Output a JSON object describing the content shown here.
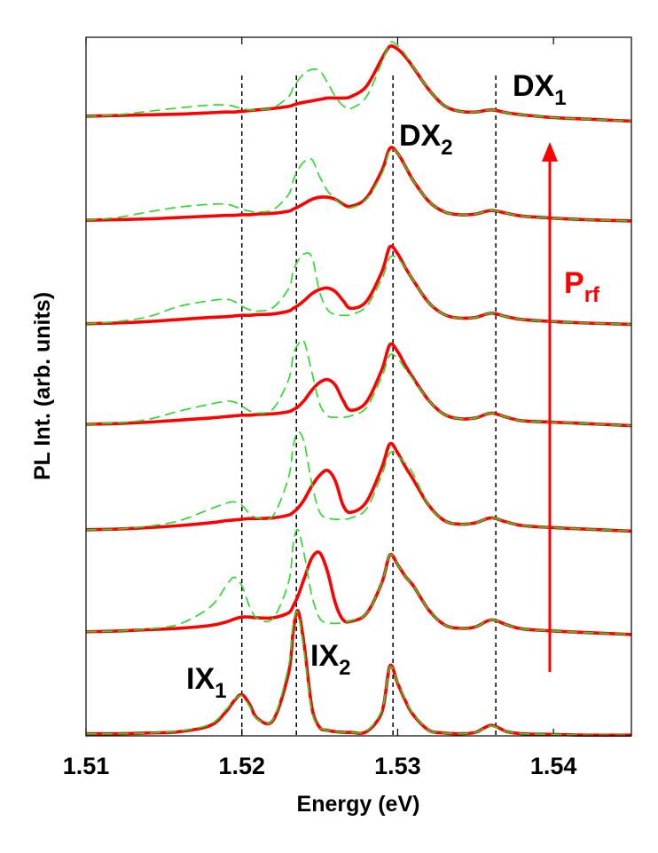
{
  "chart_data": {
    "type": "line",
    "x_label": "Energy (eV)",
    "y_label": "PL Int. (arb. units)",
    "xlim": [
      1.51,
      1.545
    ],
    "ylim": [
      0,
      100
    ],
    "xticks": [
      1.51,
      1.52,
      1.53,
      1.54
    ],
    "reference_lines": [
      1.52,
      1.5235,
      1.5297,
      1.5363
    ],
    "annotations": [
      {
        "text": "DX",
        "sub": "1",
        "color": "#000000"
      },
      {
        "text": "DX",
        "sub": "2",
        "color": "#000000"
      },
      {
        "text": "IX",
        "sub": "1",
        "color": "#000000"
      },
      {
        "text": "IX",
        "sub": "2",
        "color": "#000000"
      },
      {
        "text": "P",
        "sub": "rf",
        "color": "#ff0000"
      }
    ],
    "x": [
      1.51,
      1.512,
      1.514,
      1.516,
      1.518,
      1.519,
      1.5195,
      1.52,
      1.5205,
      1.521,
      1.522,
      1.523,
      1.5233,
      1.5236,
      1.524,
      1.5245,
      1.525,
      1.5255,
      1.526,
      1.5265,
      1.527,
      1.528,
      1.529,
      1.5295,
      1.53,
      1.5305,
      1.531,
      1.532,
      1.533,
      1.534,
      1.535,
      1.536,
      1.537,
      1.538,
      1.54,
      1.542,
      1.545
    ],
    "series": [
      {
        "color": "#ff0000",
        "dashed": false,
        "values": [
          0.3,
          0.3,
          0.4,
          0.6,
          1.5,
          3.5,
          5,
          5.9,
          4.5,
          2.5,
          2.2,
          9,
          15,
          17.9,
          13,
          4,
          1.2,
          0.8,
          0.6,
          0.5,
          0.5,
          0.6,
          3.5,
          10,
          7.5,
          5,
          3,
          0.8,
          0.4,
          0.3,
          0.5,
          1.5,
          0.6,
          0.3,
          0.2,
          0.1,
          0.1
        ]
      },
      {
        "color": "#ff0000",
        "dashed": false,
        "values": [
          14.9,
          15.0,
          15.2,
          15.4,
          15.8,
          16.3,
          16.7,
          17.0,
          17.0,
          16.9,
          16.9,
          17.6,
          18.6,
          20,
          22.5,
          25.5,
          26.2,
          23.5,
          19,
          16.6,
          16.4,
          17.5,
          22,
          25.9,
          24.5,
          22.8,
          21.5,
          18,
          15.9,
          15.4,
          15.6,
          16.6,
          15.9,
          15.3,
          15,
          14.8,
          14.5
        ]
      },
      {
        "color": "#ff0000",
        "dashed": false,
        "values": [
          29.5,
          29.6,
          29.8,
          30.1,
          30.5,
          30.8,
          30.9,
          31.0,
          31.1,
          31.1,
          31.2,
          31.6,
          32,
          32.6,
          33.8,
          35.8,
          37.3,
          38.0,
          36.5,
          33,
          32,
          33.5,
          38.5,
          41.8,
          40.5,
          38.5,
          36.7,
          33,
          30.8,
          30.3,
          30.5,
          31.2,
          30.6,
          30.1,
          29.8,
          29.6,
          29.3
        ]
      },
      {
        "color": "#ff0000",
        "dashed": false,
        "values": [
          44.6,
          44.7,
          44.9,
          45.2,
          45.5,
          45.7,
          45.8,
          45.9,
          45.9,
          46.0,
          46.1,
          46.4,
          46.7,
          47.1,
          48,
          49.5,
          50.6,
          51.0,
          50.2,
          48,
          46.6,
          47.8,
          52.5,
          56.0,
          55,
          53,
          51.2,
          48,
          46,
          45.4,
          45.5,
          46.2,
          45.6,
          45.1,
          44.9,
          44.7,
          44.4
        ]
      },
      {
        "color": "#ff0000",
        "dashed": false,
        "values": [
          59.0,
          59.1,
          59.3,
          59.6,
          59.9,
          60.0,
          60.1,
          60.2,
          60.2,
          60.3,
          60.4,
          60.8,
          61.2,
          61.6,
          62.3,
          63.3,
          63.9,
          64.1,
          63.6,
          62.3,
          61.2,
          62.2,
          66.5,
          70,
          69,
          67,
          65.2,
          62,
          60.3,
          59.8,
          59.9,
          60.5,
          60,
          59.6,
          59.3,
          59.1,
          58.9
        ]
      },
      {
        "color": "#ff0000",
        "dashed": false,
        "values": [
          73.8,
          73.9,
          74.0,
          74.2,
          74.4,
          74.5,
          74.5,
          74.6,
          74.6,
          74.7,
          74.8,
          75.1,
          75.4,
          75.7,
          76.2,
          76.8,
          77.1,
          77.1,
          76.8,
          76.1,
          75.8,
          77,
          81,
          84.1,
          83.4,
          81.5,
          79.5,
          76.5,
          75,
          74.6,
          74.7,
          75.2,
          74.8,
          74.4,
          74.1,
          73.9,
          73.7
        ]
      },
      {
        "color": "#ff0000",
        "dashed": false,
        "values": [
          88.7,
          88.8,
          88.9,
          89.0,
          89.2,
          89.3,
          89.3,
          89.4,
          89.5,
          89.6,
          89.8,
          90.1,
          90.3,
          90.5,
          90.7,
          90.9,
          91.1,
          91.3,
          91.3,
          91.3,
          91.5,
          93,
          97,
          98.7,
          98.3,
          97.2,
          95.7,
          92.5,
          90.2,
          89.4,
          89.3,
          89.6,
          89.2,
          88.9,
          88.5,
          88.3,
          88.0
        ]
      },
      {
        "color": "#22dd22",
        "dashed": true,
        "values": [
          0.3,
          0.3,
          0.4,
          0.7,
          1.7,
          3.8,
          5.2,
          5.7,
          4.2,
          2.4,
          2.3,
          10,
          16,
          17.6,
          12,
          3.5,
          1.2,
          0.8,
          0.6,
          0.5,
          0.5,
          0.7,
          3.8,
          9.8,
          7.6,
          5.2,
          3.1,
          0.8,
          0.4,
          0.3,
          0.5,
          1.4,
          0.6,
          0.3,
          0.2,
          0.1,
          0.1
        ]
      },
      {
        "color": "#22dd22",
        "dashed": true,
        "values": [
          14.9,
          15.0,
          15.3,
          16,
          18.5,
          21.5,
          22.7,
          21.5,
          18.5,
          16.8,
          16.8,
          22,
          27.5,
          29.5,
          26,
          20,
          16.8,
          16.2,
          16.1,
          16.2,
          16.5,
          17.5,
          22,
          25.9,
          24.5,
          22.8,
          21.5,
          18,
          15.9,
          15.4,
          15.6,
          16.6,
          15.9,
          15.3,
          15,
          14.8,
          14.5
        ]
      },
      {
        "color": "#22dd22",
        "dashed": true,
        "values": [
          29.5,
          29.6,
          30,
          30.8,
          32.5,
          33.3,
          33.5,
          33,
          31.8,
          31.2,
          31.5,
          37,
          41.5,
          43.5,
          42,
          36,
          32,
          31.2,
          31.0,
          31.0,
          31.2,
          32.5,
          37.5,
          40.5,
          40,
          39,
          37.5,
          33,
          30.8,
          30.3,
          30.5,
          31.2,
          30.6,
          30.1,
          29.8,
          29.6,
          29.3
        ]
      },
      {
        "color": "#22dd22",
        "dashed": true,
        "values": [
          44.6,
          44.8,
          45.3,
          46.5,
          47.5,
          47.9,
          47.8,
          47.2,
          46.5,
          46.2,
          46.8,
          51,
          54.5,
          56,
          56.4,
          52,
          47.5,
          45.8,
          45.6,
          45.6,
          45.8,
          47,
          51.5,
          54.5,
          54,
          52.5,
          51,
          48,
          46,
          45.4,
          45.5,
          46.2,
          45.6,
          45.1,
          44.9,
          44.7,
          44.4
        ]
      },
      {
        "color": "#22dd22",
        "dashed": true,
        "values": [
          59.0,
          59.3,
          60,
          61.5,
          62.3,
          62.5,
          62.2,
          61.5,
          61,
          60.8,
          61.3,
          64,
          66.5,
          68,
          69,
          68.5,
          63.5,
          61,
          60.3,
          60.2,
          60.3,
          61.5,
          65.5,
          68.5,
          68.3,
          67,
          65.2,
          62,
          60.3,
          59.8,
          59.9,
          60.5,
          60,
          59.6,
          59.3,
          59.1,
          58.9
        ]
      },
      {
        "color": "#22dd22",
        "dashed": true,
        "values": [
          73.8,
          74.2,
          75,
          75.7,
          76.1,
          76.1,
          75.8,
          75.4,
          75.1,
          75,
          75.3,
          77.5,
          79.5,
          81,
          82.2,
          82.5,
          80,
          78,
          76.8,
          75.9,
          75.6,
          76.8,
          80.5,
          83.8,
          83.4,
          81.5,
          79.5,
          76.5,
          75,
          74.6,
          74.7,
          75.2,
          74.8,
          74.4,
          74.1,
          73.9,
          73.7
        ]
      },
      {
        "color": "#22dd22",
        "dashed": true,
        "values": [
          88.7,
          88.9,
          89.4,
          89.9,
          90.3,
          90.3,
          90.1,
          89.8,
          89.6,
          89.6,
          89.9,
          91.5,
          92.8,
          93.8,
          94.8,
          95.4,
          95.2,
          93.5,
          91.5,
          90.2,
          89.8,
          91.5,
          96.5,
          99.2,
          98.8,
          97.5,
          95.8,
          92.5,
          90.2,
          89.4,
          89.3,
          89.6,
          89.2,
          88.9,
          88.5,
          88.3,
          88.0
        ]
      }
    ]
  }
}
